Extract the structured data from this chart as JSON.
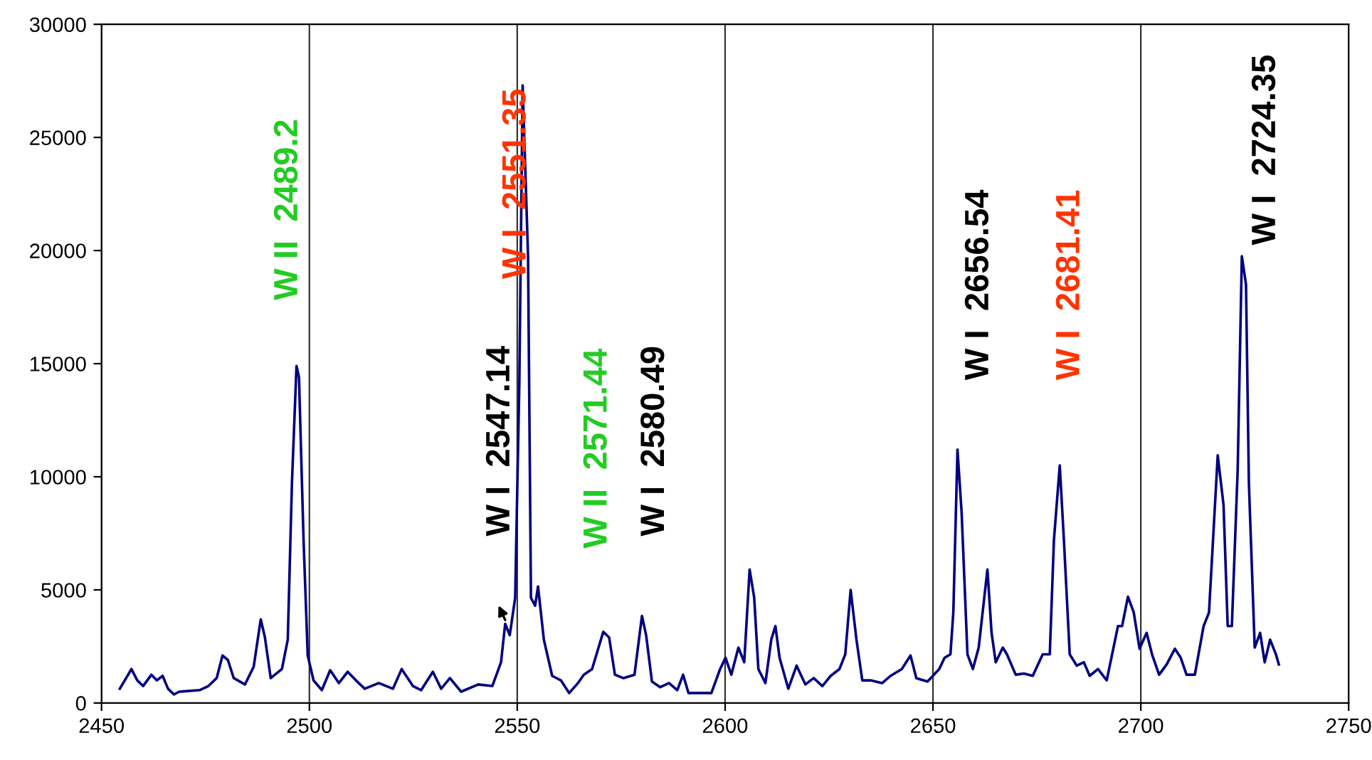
{
  "chart_data": {
    "type": "line",
    "x": [
      2454.4,
      2457.2,
      2458.6,
      2460,
      2462,
      2463.3,
      2464.7,
      2466,
      2467.4,
      2468.7,
      2473.6,
      2475.7,
      2477.7,
      2479.1,
      2480.4,
      2481.8,
      2484.5,
      2486.6,
      2488.3,
      2489.3,
      2490.7,
      2493.4,
      2494.8,
      2495.8,
      2496.9,
      2497.5,
      2498.6,
      2499.6,
      2501,
      2503,
      2505,
      2507.1,
      2509.2,
      2511.2,
      2513.3,
      2516.7,
      2520.1,
      2522.2,
      2524.9,
      2526.9,
      2529.7,
      2531.7,
      2533.8,
      2536.5,
      2540.6,
      2544,
      2546.1,
      2547.1,
      2548.2,
      2549.5,
      2550.5,
      2551.3,
      2552.6,
      2553.3,
      2554.3,
      2555,
      2556.4,
      2558.4,
      2560.5,
      2562.5,
      2564.6,
      2566,
      2568,
      2570.7,
      2572.1,
      2573.5,
      2575.5,
      2578.2,
      2580,
      2581,
      2582.4,
      2584.4,
      2586.5,
      2588.5,
      2589.9,
      2591.2,
      2596.7,
      2598.8,
      2600.1,
      2601.5,
      2603.2,
      2604.6,
      2605.9,
      2607,
      2608,
      2609.7,
      2611.1,
      2612.1,
      2613.1,
      2615.2,
      2617.2,
      2619.3,
      2621.3,
      2623.4,
      2625.4,
      2627.5,
      2628.9,
      2630.2,
      2631.6,
      2633,
      2635,
      2637.8,
      2639.8,
      2642.5,
      2644.6,
      2646,
      2648.7,
      2651.5,
      2652.8,
      2654.2,
      2654.9,
      2655.9,
      2656.9,
      2658.3,
      2659.6,
      2661,
      2663.1,
      2664.1,
      2665.1,
      2666.8,
      2667.8,
      2669.9,
      2671.9,
      2674,
      2676.4,
      2678.1,
      2679.1,
      2680.5,
      2681.5,
      2682.9,
      2684.6,
      2686.3,
      2687.7,
      2689.7,
      2691.8,
      2694.5,
      2695.5,
      2696.9,
      2698.3,
      2699.7,
      2701.4,
      2702.7,
      2704.4,
      2706.2,
      2708.2,
      2709.6,
      2711,
      2713,
      2715.1,
      2716.4,
      2718.5,
      2719.9,
      2720.9,
      2721.9,
      2723.3,
      2724.3,
      2725.3,
      2726,
      2727.4,
      2728.7,
      2729.8,
      2731.1,
      2732.5,
      2733.2
    ],
    "series": [
      {
        "color": "#000080",
        "values": [
          630,
          1500,
          1000,
          750,
          1250,
          1000,
          1200,
          630,
          380,
          500,
          570,
          750,
          1100,
          2100,
          1900,
          1100,
          820,
          1600,
          3700,
          2900,
          1100,
          1500,
          2800,
          9700,
          14900,
          14400,
          7200,
          2100,
          1000,
          570,
          1450,
          880,
          1380,
          1000,
          630,
          880,
          630,
          1500,
          750,
          570,
          1380,
          630,
          1100,
          500,
          820,
          750,
          1800,
          3500,
          3000,
          4650,
          14100,
          27300,
          19750,
          4650,
          4300,
          5150,
          2800,
          1200,
          1000,
          440,
          880,
          1250,
          1500,
          3150,
          2900,
          1250,
          1100,
          1250,
          3850,
          3000,
          950,
          700,
          880,
          570,
          1250,
          440,
          440,
          1500,
          2000,
          1250,
          2450,
          1800,
          5900,
          4650,
          1500,
          880,
          2800,
          3400,
          2000,
          630,
          1650,
          820,
          1100,
          750,
          1200,
          1500,
          2150,
          5000,
          2800,
          1000,
          1000,
          880,
          1200,
          1500,
          2100,
          1100,
          950,
          1500,
          2000,
          2150,
          4000,
          11200,
          8400,
          2150,
          1500,
          2450,
          5900,
          3100,
          1800,
          2450,
          2150,
          1250,
          1300,
          1200,
          2150,
          2150,
          7200,
          10500,
          7200,
          2150,
          1650,
          1800,
          1200,
          1500,
          1000,
          3400,
          3400,
          4700,
          4000,
          2400,
          3100,
          2150,
          1250,
          1700,
          2400,
          2000,
          1250,
          1250,
          3400,
          4000,
          10950,
          8750,
          3400,
          3400,
          10300,
          19750,
          18500,
          9700,
          2450,
          3100,
          1800,
          2800,
          2150,
          1700
        ]
      }
    ],
    "xlim": [
      2450,
      2750
    ],
    "xticks": [
      2450,
      2500,
      2550,
      2600,
      2650,
      2700,
      2750
    ],
    "ylim": [
      0,
      30000
    ],
    "yticks": [
      0,
      5000,
      10000,
      15000,
      20000,
      25000,
      30000
    ],
    "grid": "x",
    "annotations": [
      "W II  2489.2",
      "W I  2551.35",
      "W I  2547.14",
      "W II  2571.44",
      "W I  2580.49",
      "W I  2656.54",
      "W I  2681.41",
      "W I  2724.35"
    ]
  }
}
